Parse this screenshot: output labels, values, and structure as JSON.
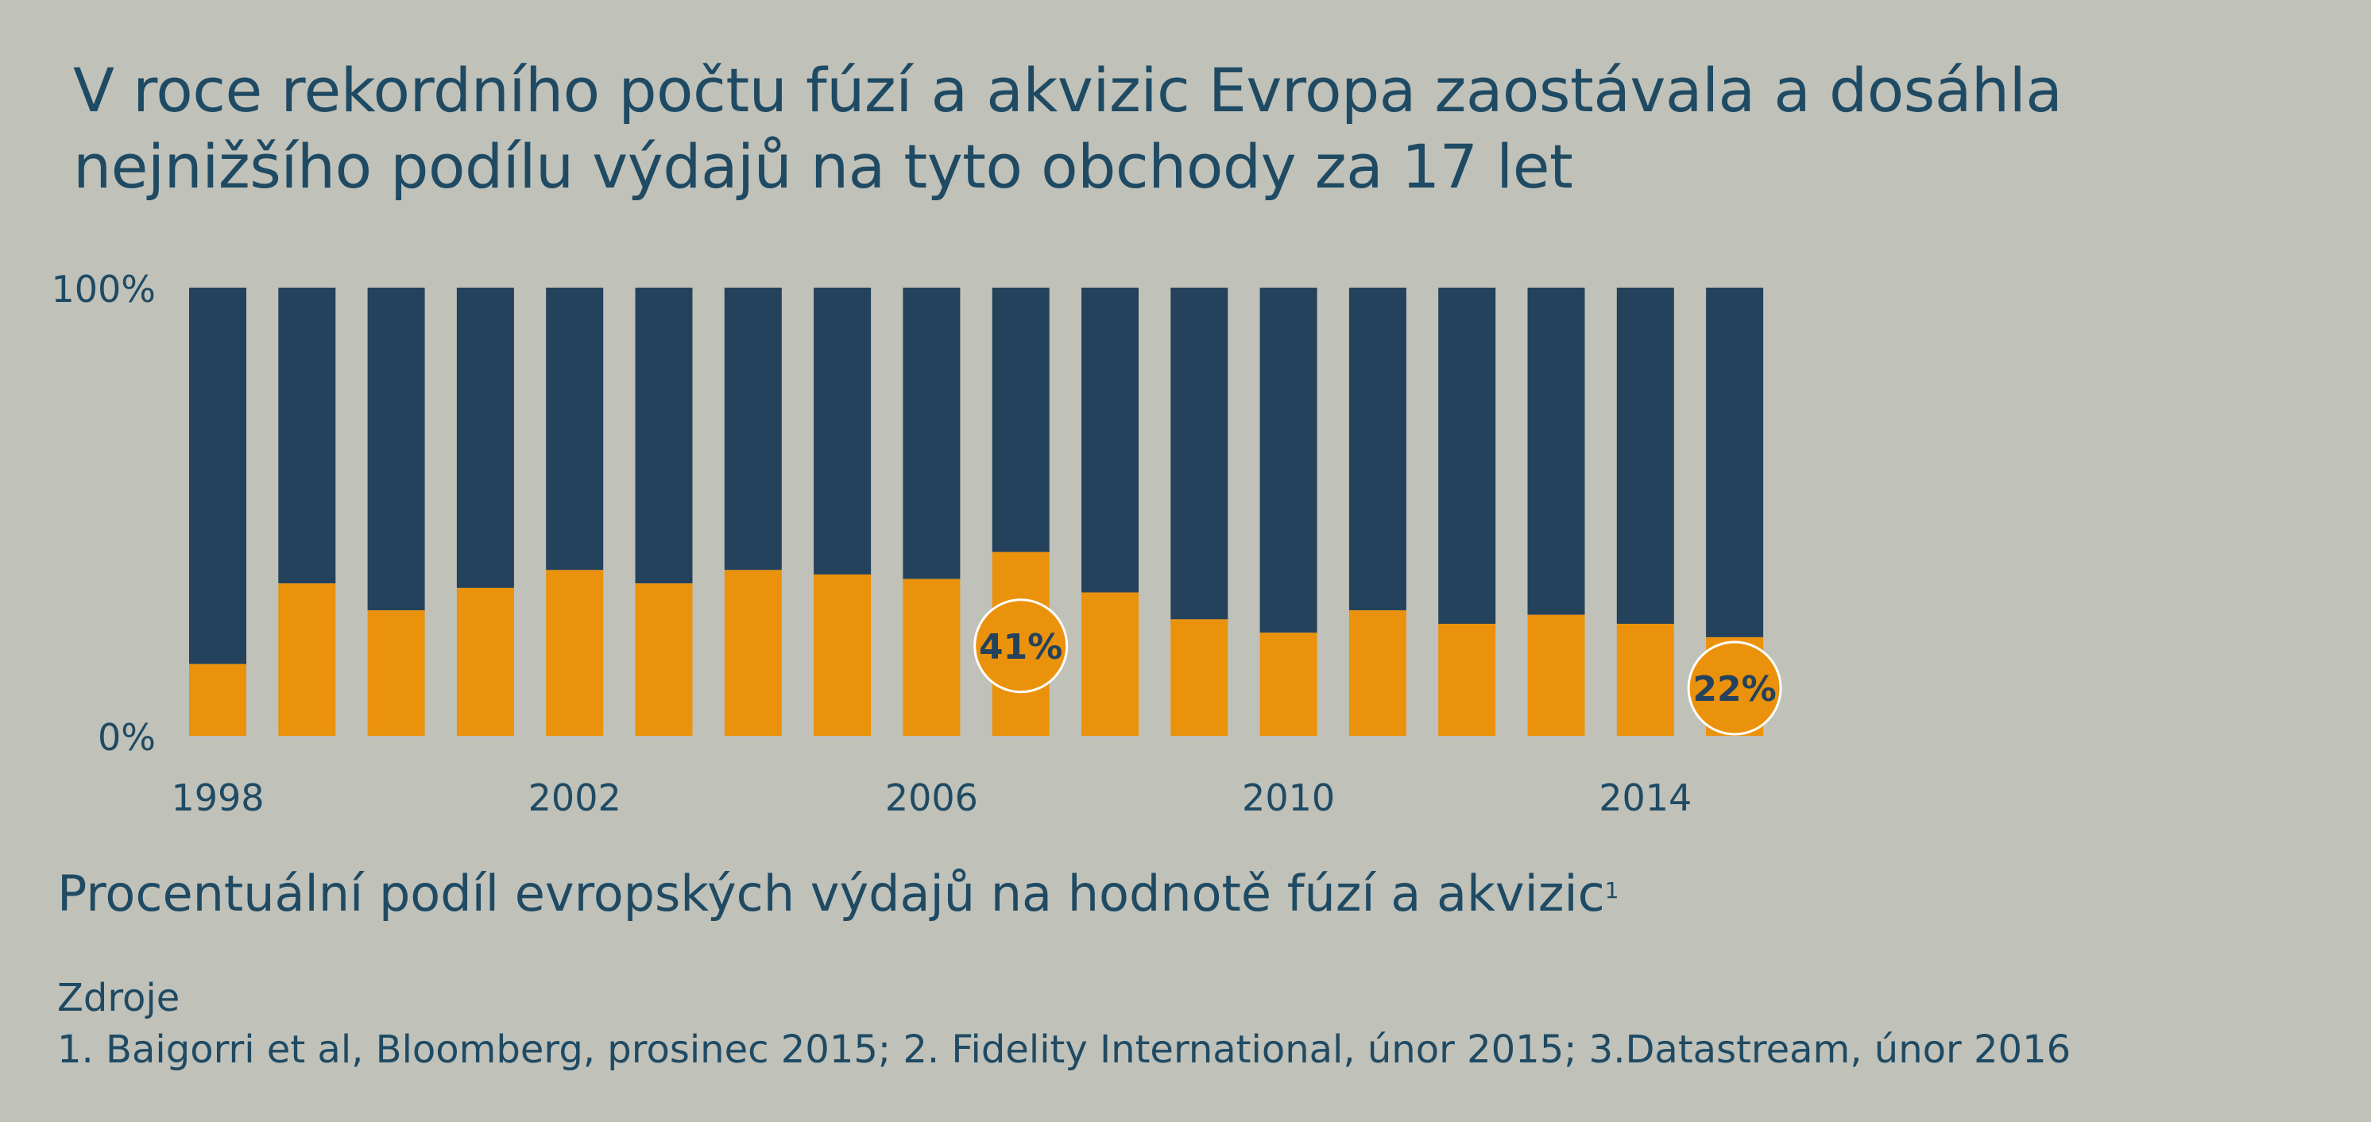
{
  "title_lines": [
    "V roce rekordního počtu fúzí a akvizic Evropa zaostávala a dosáhla",
    "nejnižšího podílu výdajů na tyto obchody za 17 let"
  ],
  "caption": "Procentuální podíl evropských výdajů na hodnotě fúzí a akvizic",
  "caption_footnote": "1",
  "sources": {
    "heading": "Zdroje",
    "text": "1. Baigorri et al, Bloomberg, prosinec 2015; 2. Fidelity International, únor 2015; 3.Datastream, únor 2016"
  },
  "colors": {
    "background": "#c0c1b9",
    "europe_share": "#eb920c",
    "rest": "#24425b",
    "text": "#1f4a63"
  },
  "chart_data": {
    "type": "bar",
    "stacked": true,
    "categories": [
      "1998",
      "1999",
      "2000",
      "2001",
      "2002",
      "2003",
      "2004",
      "2005",
      "2006",
      "2007",
      "2008",
      "2009",
      "2010",
      "2011",
      "2012",
      "2013",
      "2014",
      "2015"
    ],
    "series": [
      {
        "values": [
          16,
          34,
          28,
          33,
          37,
          34,
          37,
          36,
          35,
          41,
          32,
          26,
          23,
          28,
          25,
          27,
          25,
          22
        ]
      },
      {
        "values": [
          84,
          66,
          72,
          67,
          63,
          66,
          63,
          64,
          65,
          59,
          68,
          74,
          77,
          72,
          75,
          73,
          75,
          78
        ]
      }
    ],
    "x_tick_labels": [
      "1998",
      "2002",
      "2006",
      "2010",
      "2014"
    ],
    "y_tick_labels": [
      "100%",
      "0%"
    ],
    "ylim": [
      0,
      100
    ],
    "annotations": [
      {
        "category": "2007",
        "text": "41%"
      },
      {
        "category": "2015",
        "text": "22%"
      }
    ],
    "grid": false
  }
}
